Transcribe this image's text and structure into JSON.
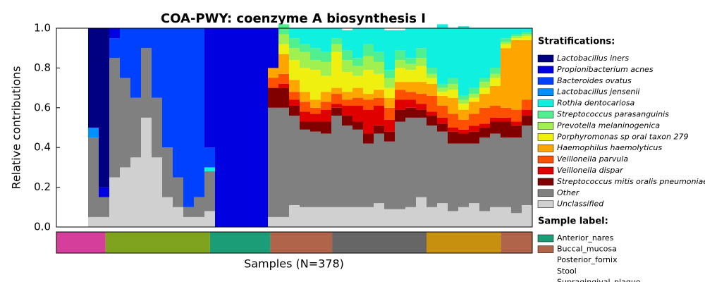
{
  "chart_data": {
    "type": "stacked-bar",
    "title": "COA-PWY: coenzyme A biosynthesis I",
    "x_label": "Samples (N=378)",
    "y_label": "Relative contributions",
    "legend_title": "Stratifications:",
    "categories": [
      null,
      null,
      null,
      null,
      null,
      null,
      null,
      null,
      null,
      null,
      null,
      null,
      null,
      null,
      null,
      null,
      null,
      null,
      null,
      null,
      null,
      null,
      null,
      null,
      null,
      null,
      null,
      null,
      null,
      null,
      null,
      null,
      null,
      null,
      null,
      null,
      null,
      null,
      null,
      null,
      null,
      null,
      null,
      null,
      null
    ],
    "ylim": [
      0,
      1
    ],
    "yticks": [
      {
        "value": 0,
        "label": "0.0"
      },
      0.2,
      0.4,
      0.6,
      0.8,
      {
        "value": 1,
        "label": "1.0"
      }
    ],
    "series": [
      {
        "name": "Lactobacillus iners",
        "color": "#000080",
        "values": [
          0,
          0,
          0,
          0.5,
          0.8,
          0,
          0,
          0,
          0,
          0,
          0,
          0,
          0,
          0,
          0,
          0,
          0,
          0,
          0,
          0,
          0,
          0,
          0,
          0,
          0,
          0,
          0,
          0,
          0,
          0,
          0,
          0,
          0,
          0,
          0,
          0,
          0,
          0,
          0,
          0,
          0,
          0,
          0,
          0,
          0
        ]
      },
      {
        "name": "Propionibacterium acnes",
        "color": "#0000e0",
        "values": [
          0,
          0,
          0,
          0,
          0.05,
          0.05,
          0,
          0,
          0,
          0,
          0,
          0,
          0,
          0,
          0.6,
          1,
          1,
          1,
          1,
          1,
          0.2,
          0,
          0,
          0,
          0,
          0,
          0,
          0,
          0,
          0,
          0,
          0,
          0,
          0,
          0,
          0,
          0,
          0,
          0,
          0,
          0,
          0,
          0,
          0,
          0
        ]
      },
      {
        "name": "Bacteroides ovatus",
        "color": "#0040ff",
        "values": [
          0,
          0,
          0,
          0,
          0,
          0.1,
          0.25,
          0.35,
          0.1,
          0.35,
          0.6,
          0.75,
          0.9,
          0.85,
          0.1,
          0,
          0,
          0,
          0,
          0,
          0,
          0,
          0,
          0,
          0,
          0,
          0,
          0,
          0,
          0,
          0,
          0,
          0,
          0,
          0,
          0,
          0,
          0,
          0,
          0,
          0,
          0,
          0,
          0,
          0
        ]
      },
      {
        "name": "Lactobacillus jensenii",
        "color": "#0090ff",
        "values": [
          0,
          0,
          0,
          0.05,
          0,
          0,
          0,
          0,
          0,
          0,
          0,
          0,
          0,
          0,
          0,
          0,
          0,
          0,
          0,
          0,
          0,
          0,
          0,
          0,
          0,
          0,
          0,
          0,
          0,
          0,
          0,
          0,
          0,
          0,
          0,
          0,
          0,
          0,
          0,
          0,
          0,
          0,
          0,
          0,
          0
        ]
      },
      {
        "name": "Rothia dentocariosa",
        "color": "#10f0e0",
        "values": [
          0,
          0,
          0,
          0,
          0,
          0,
          0,
          0,
          0,
          0,
          0,
          0,
          0,
          0,
          0.02,
          0,
          0,
          0,
          0,
          0,
          0,
          0,
          0.05,
          0.08,
          0.1,
          0.12,
          0.05,
          0.1,
          0.15,
          0.08,
          0.12,
          0.2,
          0.1,
          0.15,
          0.1,
          0.2,
          0.3,
          0.25,
          0.35,
          0.3,
          0.25,
          0.2,
          0.05,
          0.03,
          0.02
        ]
      },
      {
        "name": "Streptococcus parasanguinis",
        "color": "#50f090",
        "values": [
          0,
          0,
          0,
          0,
          0,
          0,
          0,
          0,
          0,
          0,
          0,
          0,
          0,
          0,
          0,
          0,
          0,
          0,
          0,
          0,
          0,
          0.05,
          0.05,
          0.04,
          0.06,
          0.05,
          0.03,
          0.05,
          0.04,
          0.06,
          0.05,
          0.04,
          0.05,
          0.03,
          0.05,
          0.03,
          0.02,
          0.03,
          0.02,
          0.03,
          0.02,
          0.03,
          0.02,
          0.01,
          0.01
        ]
      },
      {
        "name": "Prevotella melaninogenica",
        "color": "#a0f050",
        "values": [
          0,
          0,
          0,
          0,
          0,
          0,
          0,
          0,
          0,
          0,
          0,
          0,
          0,
          0,
          0,
          0,
          0,
          0,
          0,
          0,
          0,
          0.05,
          0.06,
          0.08,
          0.05,
          0.07,
          0.04,
          0.06,
          0.05,
          0.07,
          0.06,
          0.05,
          0.04,
          0.03,
          0.04,
          0.02,
          0.02,
          0.03,
          0.02,
          0.02,
          0.03,
          0.02,
          0.01,
          0.01,
          0.01
        ]
      },
      {
        "name": "Porphyromonas sp oral taxon 279",
        "color": "#f0f010",
        "values": [
          0,
          0,
          0,
          0,
          0,
          0,
          0,
          0,
          0,
          0,
          0,
          0,
          0,
          0,
          0,
          0,
          0,
          0,
          0,
          0,
          0,
          0.05,
          0.1,
          0.12,
          0.15,
          0.08,
          0.18,
          0.1,
          0.06,
          0.12,
          0.08,
          0.05,
          0.07,
          0.06,
          0.08,
          0.03,
          0.02,
          0.04,
          0.03,
          0.02,
          0.03,
          0.04,
          0.02,
          0.01,
          0.02
        ]
      },
      {
        "name": "Haemophilus haemolyticus",
        "color": "#ffa500",
        "values": [
          0,
          0,
          0,
          0,
          0,
          0,
          0,
          0,
          0,
          0,
          0,
          0,
          0,
          0,
          0,
          0,
          0,
          0,
          0,
          0,
          0.05,
          0.1,
          0.06,
          0.05,
          0.04,
          0.05,
          0.03,
          0.04,
          0.05,
          0.03,
          0.04,
          0.05,
          0.04,
          0.05,
          0.06,
          0.06,
          0.05,
          0.08,
          0.05,
          0.06,
          0.07,
          0.1,
          0.3,
          0.35,
          0.3
        ]
      },
      {
        "name": "Veillonella parvula",
        "color": "#ff5000",
        "values": [
          0,
          0,
          0,
          0,
          0,
          0,
          0,
          0,
          0,
          0,
          0,
          0,
          0,
          0,
          0,
          0,
          0,
          0,
          0,
          0,
          0.05,
          0.05,
          0.04,
          0.05,
          0.03,
          0.04,
          0.05,
          0.03,
          0.04,
          0.05,
          0.04,
          0.06,
          0.05,
          0.04,
          0.05,
          0.08,
          0.06,
          0.07,
          0.05,
          0.06,
          0.08,
          0.06,
          0.05,
          0.06,
          0.05
        ]
      },
      {
        "name": "Veillonella dispar",
        "color": "#e00000",
        "values": [
          0,
          0,
          0,
          0,
          0,
          0,
          0,
          0,
          0,
          0,
          0,
          0,
          0,
          0,
          0,
          0,
          0,
          0,
          0,
          0,
          0,
          0.02,
          0.03,
          0.05,
          0.04,
          0.06,
          0.02,
          0.05,
          0.08,
          0.12,
          0.1,
          0.06,
          0.05,
          0.04,
          0.03,
          0.02,
          0.03,
          0.02,
          0.02,
          0.03,
          0.02,
          0.02,
          0.02,
          0.02,
          0.03
        ]
      },
      {
        "name": "Streptococcus mitis oralis pneumoniae",
        "color": "#800000",
        "values": [
          0,
          0,
          0,
          0,
          0,
          0,
          0,
          0,
          0,
          0,
          0,
          0,
          0,
          0,
          0,
          0,
          0,
          0,
          0,
          0,
          0.1,
          0.1,
          0.05,
          0.04,
          0.05,
          0.06,
          0.04,
          0.05,
          0.04,
          0.05,
          0.04,
          0.05,
          0.06,
          0.05,
          0.04,
          0.05,
          0.04,
          0.06,
          0.05,
          0.06,
          0.05,
          0.06,
          0.08,
          0.06,
          0.05
        ]
      },
      {
        "name": "Other",
        "color": "#808080",
        "values": [
          0,
          0,
          0,
          0.4,
          0.1,
          0.6,
          0.45,
          0.3,
          0.35,
          0.3,
          0.25,
          0.15,
          0.05,
          0.1,
          0.2,
          0,
          0,
          0,
          0,
          0,
          0.55,
          0.55,
          0.45,
          0.39,
          0.38,
          0.37,
          0.46,
          0.41,
          0.39,
          0.32,
          0.35,
          0.34,
          0.44,
          0.45,
          0.4,
          0.41,
          0.36,
          0.34,
          0.32,
          0.3,
          0.37,
          0.37,
          0.35,
          0.38,
          0.4
        ]
      },
      {
        "name": "Unclassified",
        "color": "#d0d0d0",
        "values": [
          0,
          0,
          0,
          0.05,
          0.05,
          0.25,
          0.3,
          0.35,
          0.55,
          0.35,
          0.15,
          0.1,
          0.05,
          0.05,
          0.08,
          0,
          0,
          0,
          0,
          0,
          0.05,
          0.05,
          0.11,
          0.1,
          0.1,
          0.1,
          0.1,
          0.1,
          0.1,
          0.1,
          0.12,
          0.09,
          0.09,
          0.1,
          0.15,
          0.1,
          0.12,
          0.08,
          0.1,
          0.12,
          0.08,
          0.1,
          0.1,
          0.07,
          0.11
        ]
      }
    ],
    "sample_label_title": "Sample label:",
    "sample_labels": [
      {
        "name": "Anterior_nares",
        "color": "#1b9e77"
      },
      {
        "name": "Buccal_mucosa",
        "color": "#b0654a"
      },
      {
        "name": "Posterior_fornix"
      },
      {
        "name": "Stool"
      },
      {
        "name": "Supragingival_plaque"
      }
    ],
    "sample_strip": [
      {
        "color": "#d53e9a",
        "count": 39
      },
      {
        "color": "#7fa31e",
        "count": 83
      },
      {
        "color": "#1b9e77",
        "count": 48
      },
      {
        "color": "#b0654a",
        "count": 49
      },
      {
        "color": "#666666",
        "count": 75
      },
      {
        "color": "#c8900f",
        "count": 59
      },
      {
        "color": "#b0654a",
        "count": 25
      }
    ]
  }
}
